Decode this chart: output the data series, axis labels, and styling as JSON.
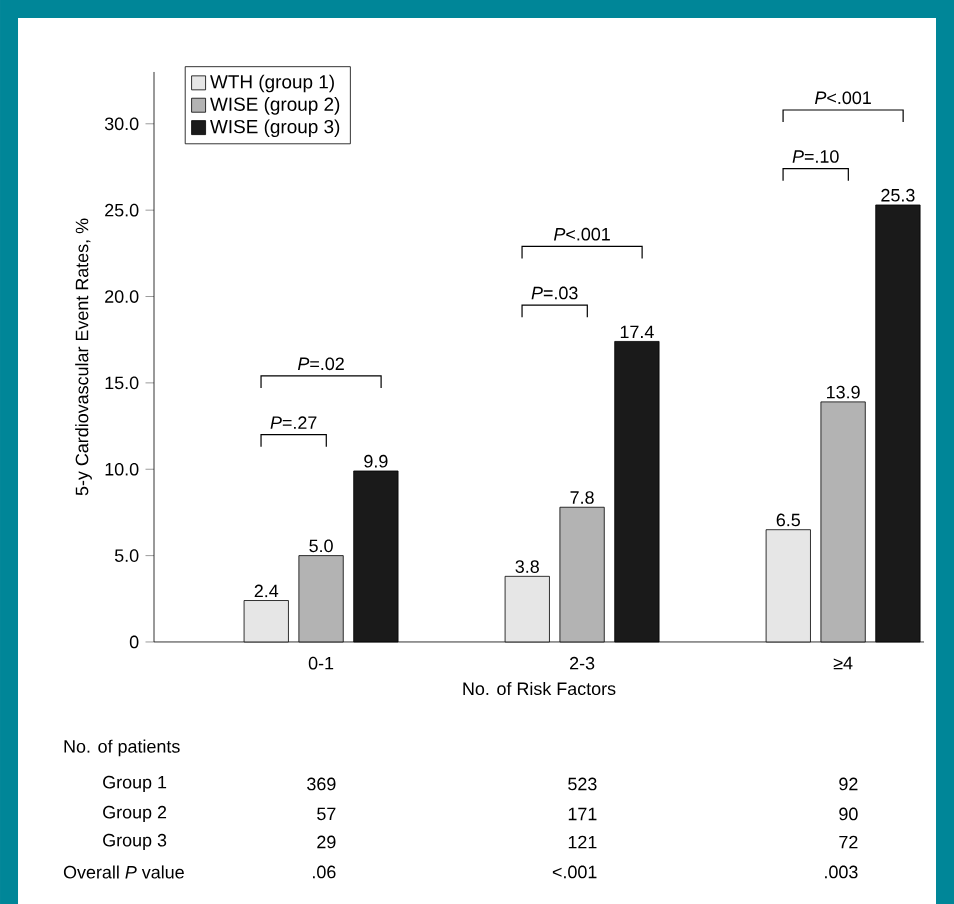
{
  "chart_data": {
    "type": "bar",
    "xlabel": "No. of Risk Factors",
    "ylabel": "5-y Cardiovascular Event Rates, %",
    "categories": [
      "0-1",
      "2-3",
      "≥4"
    ],
    "series": [
      {
        "name": "WTH (group 1)",
        "color": "#e6e6e6",
        "values": [
          2.4,
          3.8,
          6.5
        ],
        "value_labels": [
          "2.4",
          "3.8",
          "6.5"
        ]
      },
      {
        "name": "WISE (group 2)",
        "color": "#b3b3b3",
        "values": [
          5.0,
          7.8,
          13.9
        ],
        "value_labels": [
          "5.0",
          "7.8",
          "13.9"
        ]
      },
      {
        "name": "WISE (group 3)",
        "color": "#1a1a1a",
        "values": [
          9.9,
          17.4,
          25.3
        ],
        "value_labels": [
          "9.9",
          "17.4",
          "25.3"
        ]
      }
    ],
    "ylim": [
      0,
      33
    ],
    "yticks": [
      {
        "value": 0,
        "label": "0"
      },
      {
        "value": 5,
        "label": "5.0"
      },
      {
        "value": 10,
        "label": "10.0"
      },
      {
        "value": 15,
        "label": "15.0"
      },
      {
        "value": 20,
        "label": "20.0"
      },
      {
        "value": 25,
        "label": "25.0"
      },
      {
        "value": 30,
        "label": "30.0"
      }
    ],
    "legend": "top left",
    "grid": false,
    "annotations": [
      "*P*=.27",
      "*P*=.02",
      "*P*=.03",
      "*P*<.001",
      "*P*=.10",
      "*P*<.001",
      "No. of patients",
      "Group 1",
      "369",
      "523",
      "92",
      "Group 2",
      "57",
      "171",
      "90",
      "Group 3",
      "29",
      "121",
      "72",
      "Overall *P* value",
      ".06",
      "<.001",
      ".003"
    ]
  }
}
